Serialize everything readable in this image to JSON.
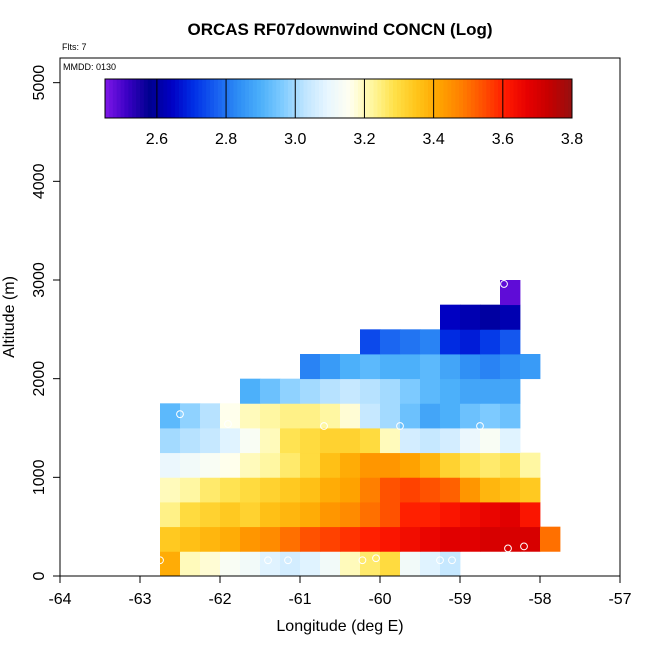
{
  "chart_data": {
    "type": "heatmap",
    "title": "ORCAS RF07downwind CONCN (Log)",
    "subtitle_flts": "Flts: 7",
    "subtitle_mmdd": "MMDD: 0130",
    "xlabel": "Longitude (deg E)",
    "ylabel": "Altitude (m)",
    "xlim": [
      -64,
      -57
    ],
    "ylim": [
      0,
      5250
    ],
    "x_ticks": [
      -64,
      -63,
      -62,
      -61,
      -60,
      -59,
      -58,
      -57
    ],
    "y_ticks": [
      0,
      1000,
      2000,
      3000,
      4000,
      5000
    ],
    "cell_width_deg": 0.25,
    "cell_height_m": 250,
    "colorbar": {
      "min": 2.45,
      "max": 3.8,
      "ticks": [
        2.6,
        2.8,
        3.0,
        3.2,
        3.4,
        3.6,
        3.8
      ],
      "colors": [
        "#7f17e8",
        "#3a00c4",
        "#00008f",
        "#0000c4",
        "#0030e6",
        "#1860f0",
        "#2e8ef5",
        "#4cb0fa",
        "#80ccff",
        "#bfe5ff",
        "#e8f6ff",
        "#fffff0",
        "#fff7a0",
        "#ffe14a",
        "#ffc51a",
        "#ffa500",
        "#ff8000",
        "#ff5000",
        "#ff1a00",
        "#e60000",
        "#c40000",
        "#961010"
      ]
    },
    "rows": [
      {
        "base_alt": 0,
        "start_lon": -62.75,
        "values": [
          3.4,
          3.2,
          3.18,
          3.14,
          3.12,
          3.08,
          3.06,
          3.08,
          3.12,
          3.2,
          3.26,
          3.3,
          3.12,
          3.08,
          3.04
        ]
      },
      {
        "base_alt": 250,
        "start_lon": -62.75,
        "values": [
          3.34,
          3.36,
          3.38,
          3.4,
          3.44,
          3.46,
          3.5,
          3.54,
          3.56,
          3.58,
          3.6,
          3.62,
          3.64,
          3.66,
          3.68,
          3.68,
          3.7,
          3.7,
          3.7,
          3.5
        ]
      },
      {
        "base_alt": 500,
        "start_lon": -62.75,
        "values": [
          3.24,
          3.3,
          3.32,
          3.34,
          3.32,
          3.36,
          3.38,
          3.4,
          3.44,
          3.46,
          3.5,
          3.54,
          3.6,
          3.6,
          3.62,
          3.64,
          3.66,
          3.68,
          3.62
        ]
      },
      {
        "base_alt": 750,
        "start_lon": -62.75,
        "values": [
          3.2,
          3.22,
          3.26,
          3.28,
          3.3,
          3.32,
          3.34,
          3.36,
          3.4,
          3.42,
          3.48,
          3.54,
          3.56,
          3.54,
          3.52,
          3.44,
          3.38,
          3.36,
          3.34
        ]
      },
      {
        "base_alt": 1000,
        "start_lon": -62.75,
        "values": [
          3.1,
          3.12,
          3.14,
          3.16,
          3.2,
          3.22,
          3.26,
          3.3,
          3.36,
          3.4,
          3.44,
          3.44,
          3.42,
          3.38,
          3.32,
          3.28,
          3.26,
          3.28,
          3.22
        ]
      },
      {
        "base_alt": 1250,
        "start_lon": -62.75,
        "values": [
          3.0,
          3.02,
          3.04,
          3.08,
          3.14,
          3.2,
          3.28,
          3.3,
          3.32,
          3.32,
          3.3,
          3.2,
          3.06,
          3.04,
          3.06,
          3.1,
          3.14,
          3.08
        ]
      },
      {
        "base_alt": 1500,
        "start_lon": -62.75,
        "values": [
          2.92,
          2.98,
          3.02,
          3.16,
          3.2,
          3.22,
          3.24,
          3.24,
          3.22,
          3.18,
          3.04,
          3.0,
          2.94,
          2.88,
          2.9,
          2.94,
          2.96,
          2.94
        ]
      },
      {
        "base_alt": 1750,
        "start_lon": -61.75,
        "values": [
          2.9,
          2.94,
          2.98,
          3.0,
          3.02,
          3.04,
          3.02,
          3.0,
          2.96,
          2.92,
          2.9,
          2.88,
          2.88,
          2.88
        ]
      },
      {
        "base_alt": 2000,
        "start_lon": -61.0,
        "values": [
          2.82,
          2.86,
          2.9,
          2.92,
          2.9,
          2.9,
          2.92,
          2.88,
          2.84,
          2.82,
          2.84,
          2.86
        ]
      },
      {
        "base_alt": 2250,
        "start_lon": -60.25,
        "values": [
          2.74,
          2.78,
          2.8,
          2.82,
          2.7,
          2.68,
          2.72,
          2.76
        ]
      },
      {
        "base_alt": 2500,
        "start_lon": -59.25,
        "values": [
          2.64,
          2.62,
          2.6,
          2.62
        ]
      },
      {
        "base_alt": 2750,
        "start_lon": -58.5,
        "values": [
          2.48
        ]
      }
    ],
    "points": [
      {
        "lon": -62.5,
        "alt": 1640
      },
      {
        "lon": -61.9,
        "alt": 1540
      },
      {
        "lon": -60.7,
        "alt": 1520
      },
      {
        "lon": -59.75,
        "alt": 1520
      },
      {
        "lon": -58.75,
        "alt": 1520
      },
      {
        "lon": -62.75,
        "alt": 160
      },
      {
        "lon": -61.4,
        "alt": 160
      },
      {
        "lon": -61.15,
        "alt": 160
      },
      {
        "lon": -60.22,
        "alt": 160
      },
      {
        "lon": -60.05,
        "alt": 180
      },
      {
        "lon": -59.25,
        "alt": 160
      },
      {
        "lon": -59.1,
        "alt": 160
      },
      {
        "lon": -58.4,
        "alt": 280
      },
      {
        "lon": -58.2,
        "alt": 300
      },
      {
        "lon": -58.45,
        "alt": 2960
      }
    ]
  }
}
